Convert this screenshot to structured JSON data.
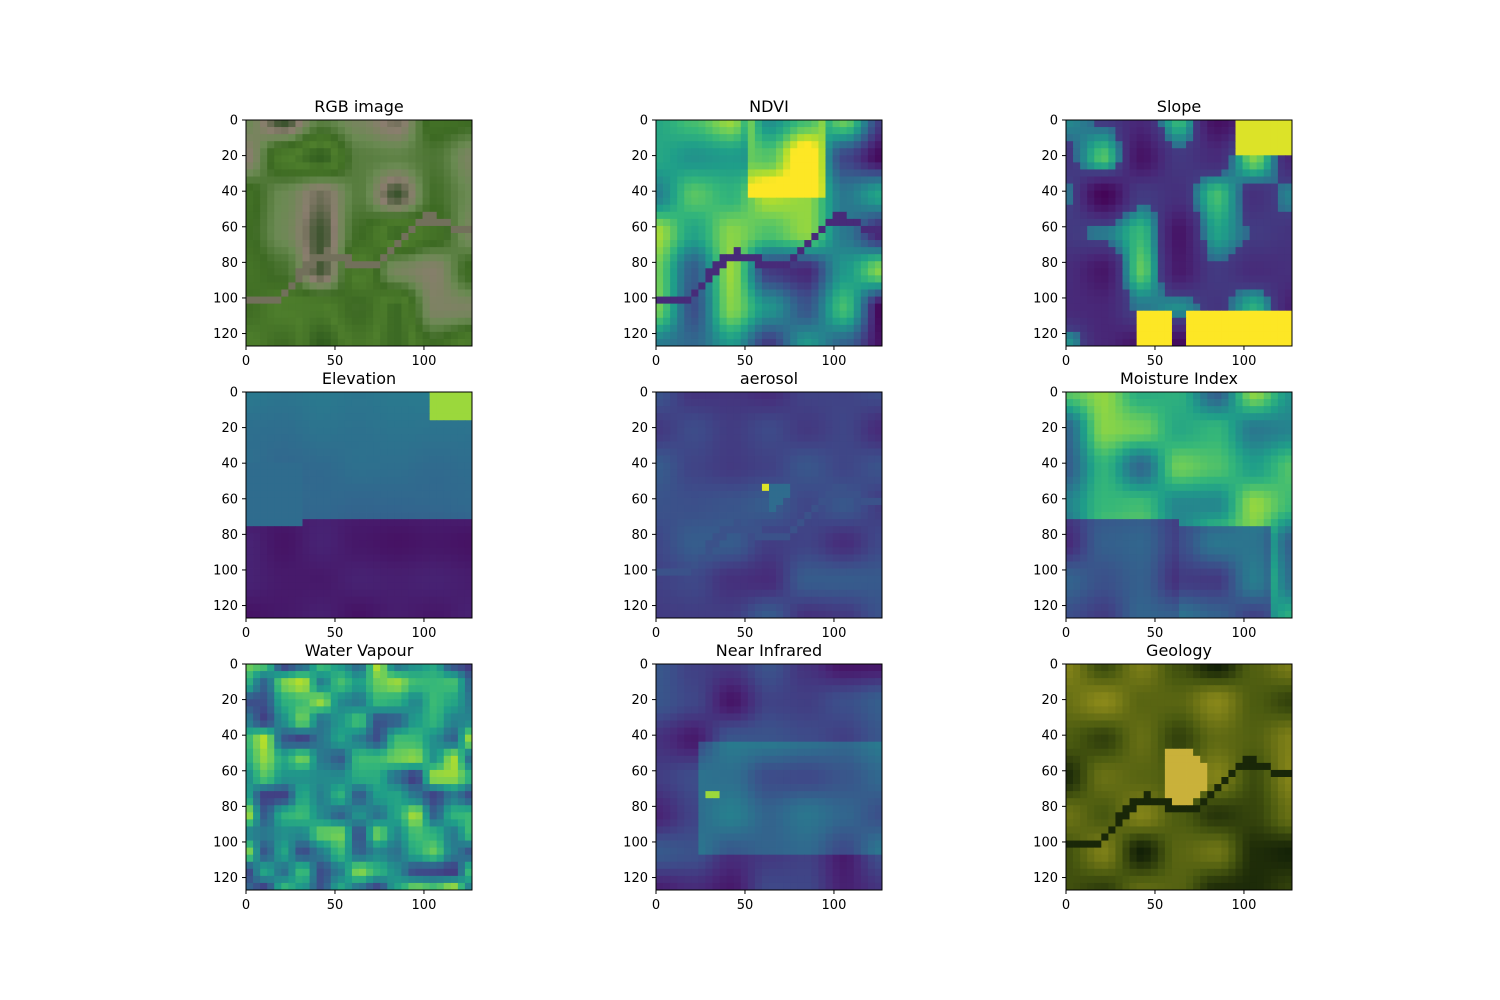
{
  "figure": {
    "grid": "3x3"
  },
  "chart_data": [
    {
      "type": "heatmap",
      "title": "RGB image",
      "render": "rgb",
      "colors": [
        "#2f5b1e",
        "#4e7e2c",
        "#3d6a23",
        "#6a8a52",
        "#8a7d6e",
        "#2b4a20"
      ],
      "xlim": [
        0,
        127
      ],
      "ylim": [
        127,
        0
      ],
      "xticks": [
        0,
        50,
        100
      ],
      "yticks": [
        0,
        20,
        40,
        60,
        80,
        100,
        120
      ],
      "grid": false
    },
    {
      "type": "heatmap",
      "title": "NDVI",
      "render": "viridis",
      "colormap": "viridis",
      "pattern": "ndvi",
      "xlim": [
        0,
        127
      ],
      "ylim": [
        127,
        0
      ],
      "xticks": [
        0,
        50,
        100
      ],
      "yticks": [
        0,
        20,
        40,
        60,
        80,
        100,
        120
      ],
      "grid": false
    },
    {
      "type": "heatmap",
      "title": "Slope",
      "render": "viridis",
      "colormap": "viridis",
      "pattern": "slope",
      "xlim": [
        0,
        127
      ],
      "ylim": [
        127,
        0
      ],
      "xticks": [
        0,
        50,
        100
      ],
      "yticks": [
        0,
        20,
        40,
        60,
        80,
        100,
        120
      ],
      "grid": false
    },
    {
      "type": "heatmap",
      "title": "Elevation",
      "render": "viridis",
      "colormap": "viridis",
      "pattern": "elevation",
      "xlim": [
        0,
        127
      ],
      "ylim": [
        127,
        0
      ],
      "xticks": [
        0,
        50,
        100
      ],
      "yticks": [
        0,
        20,
        40,
        60,
        80,
        100,
        120
      ],
      "grid": false
    },
    {
      "type": "heatmap",
      "title": "aerosol",
      "render": "viridis",
      "colormap": "viridis",
      "pattern": "aerosol",
      "xlim": [
        0,
        127
      ],
      "ylim": [
        127,
        0
      ],
      "xticks": [
        0,
        50,
        100
      ],
      "yticks": [
        0,
        20,
        40,
        60,
        80,
        100,
        120
      ],
      "grid": false
    },
    {
      "type": "heatmap",
      "title": "Moisture Index",
      "render": "viridis",
      "colormap": "viridis",
      "pattern": "moisture",
      "xlim": [
        0,
        127
      ],
      "ylim": [
        127,
        0
      ],
      "xticks": [
        0,
        50,
        100
      ],
      "yticks": [
        0,
        20,
        40,
        60,
        80,
        100,
        120
      ],
      "grid": false
    },
    {
      "type": "heatmap",
      "title": "Water Vapour",
      "render": "viridis",
      "colormap": "viridis",
      "pattern": "vapour",
      "xlim": [
        0,
        127
      ],
      "ylim": [
        127,
        0
      ],
      "xticks": [
        0,
        50,
        100
      ],
      "yticks": [
        0,
        20,
        40,
        60,
        80,
        100,
        120
      ],
      "grid": false
    },
    {
      "type": "heatmap",
      "title": "Near Infrared",
      "render": "viridis",
      "colormap": "viridis",
      "pattern": "nir",
      "xlim": [
        0,
        127
      ],
      "ylim": [
        127,
        0
      ],
      "xticks": [
        0,
        50,
        100
      ],
      "yticks": [
        0,
        20,
        40,
        60,
        80,
        100,
        120
      ],
      "grid": false
    },
    {
      "type": "heatmap",
      "title": "Geology",
      "render": "geology",
      "colors": [
        "#0d1a06",
        "#4a5a10",
        "#8c8a1a",
        "#c9b13a",
        "#e8b640"
      ],
      "xlim": [
        0,
        127
      ],
      "ylim": [
        127,
        0
      ],
      "xticks": [
        0,
        50,
        100
      ],
      "yticks": [
        0,
        20,
        40,
        60,
        80,
        100,
        120
      ],
      "grid": false
    }
  ]
}
